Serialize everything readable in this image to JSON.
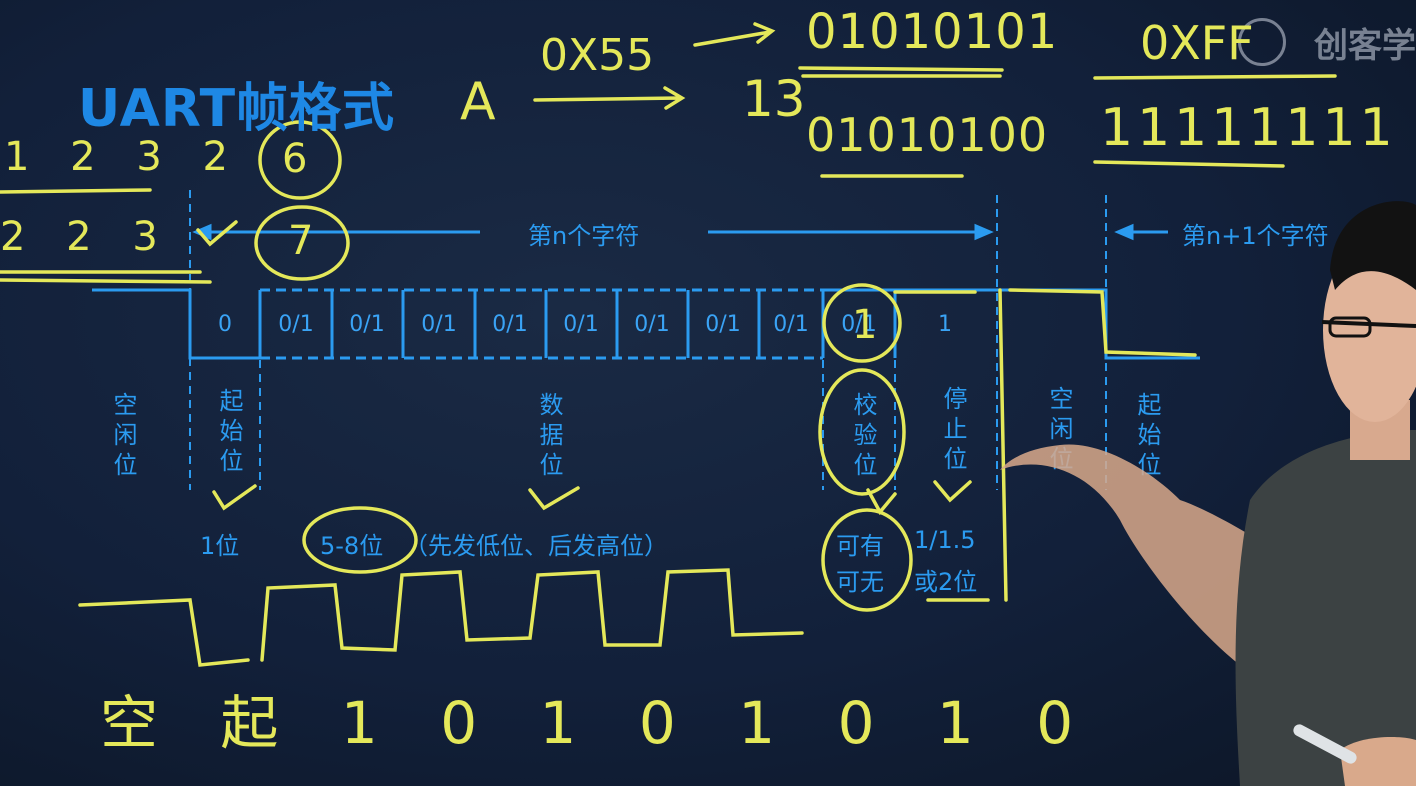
{
  "title": "UART帧格式",
  "watermark": "创客学",
  "labels": {
    "char_n": "第n个字符",
    "char_n1": "第n+1个字符",
    "idle": "空闲位",
    "start": "起始位",
    "data": "数据位",
    "parity": "校验位",
    "stop": "停止位",
    "idle2": "空闲位",
    "start2": "起始位",
    "start_count": "1位",
    "data_count": "5-8位",
    "data_note": "（先发低位、后发高位）",
    "parity_note_1": "可有",
    "parity_note_2": "可无",
    "stop_note_1": "1/1.5",
    "stop_note_2": "或2位"
  },
  "frame_cells": [
    "0",
    "0/1",
    "0/1",
    "0/1",
    "0/1",
    "0/1",
    "0/1",
    "0/1",
    "0/1",
    "0/1",
    "1"
  ],
  "chalk": {
    "hex_a": "0X55",
    "letter_a": "A",
    "arrow_num": "13",
    "bits_top": "01010101",
    "bits_bottom": "01010100",
    "hex_ff": "0XFF",
    "ones": "11111111",
    "left_row1": "1 2 3 2",
    "left_row2": "2 2 3",
    "circle_6": "6",
    "circle_7": "7",
    "circle_1": "1",
    "bottom_row": "空 起 1 0 1 0 1 0 1 0"
  },
  "colors": {
    "board": "#12203a",
    "blue": "#2b9bf0",
    "chalk": "#e4e85a"
  }
}
